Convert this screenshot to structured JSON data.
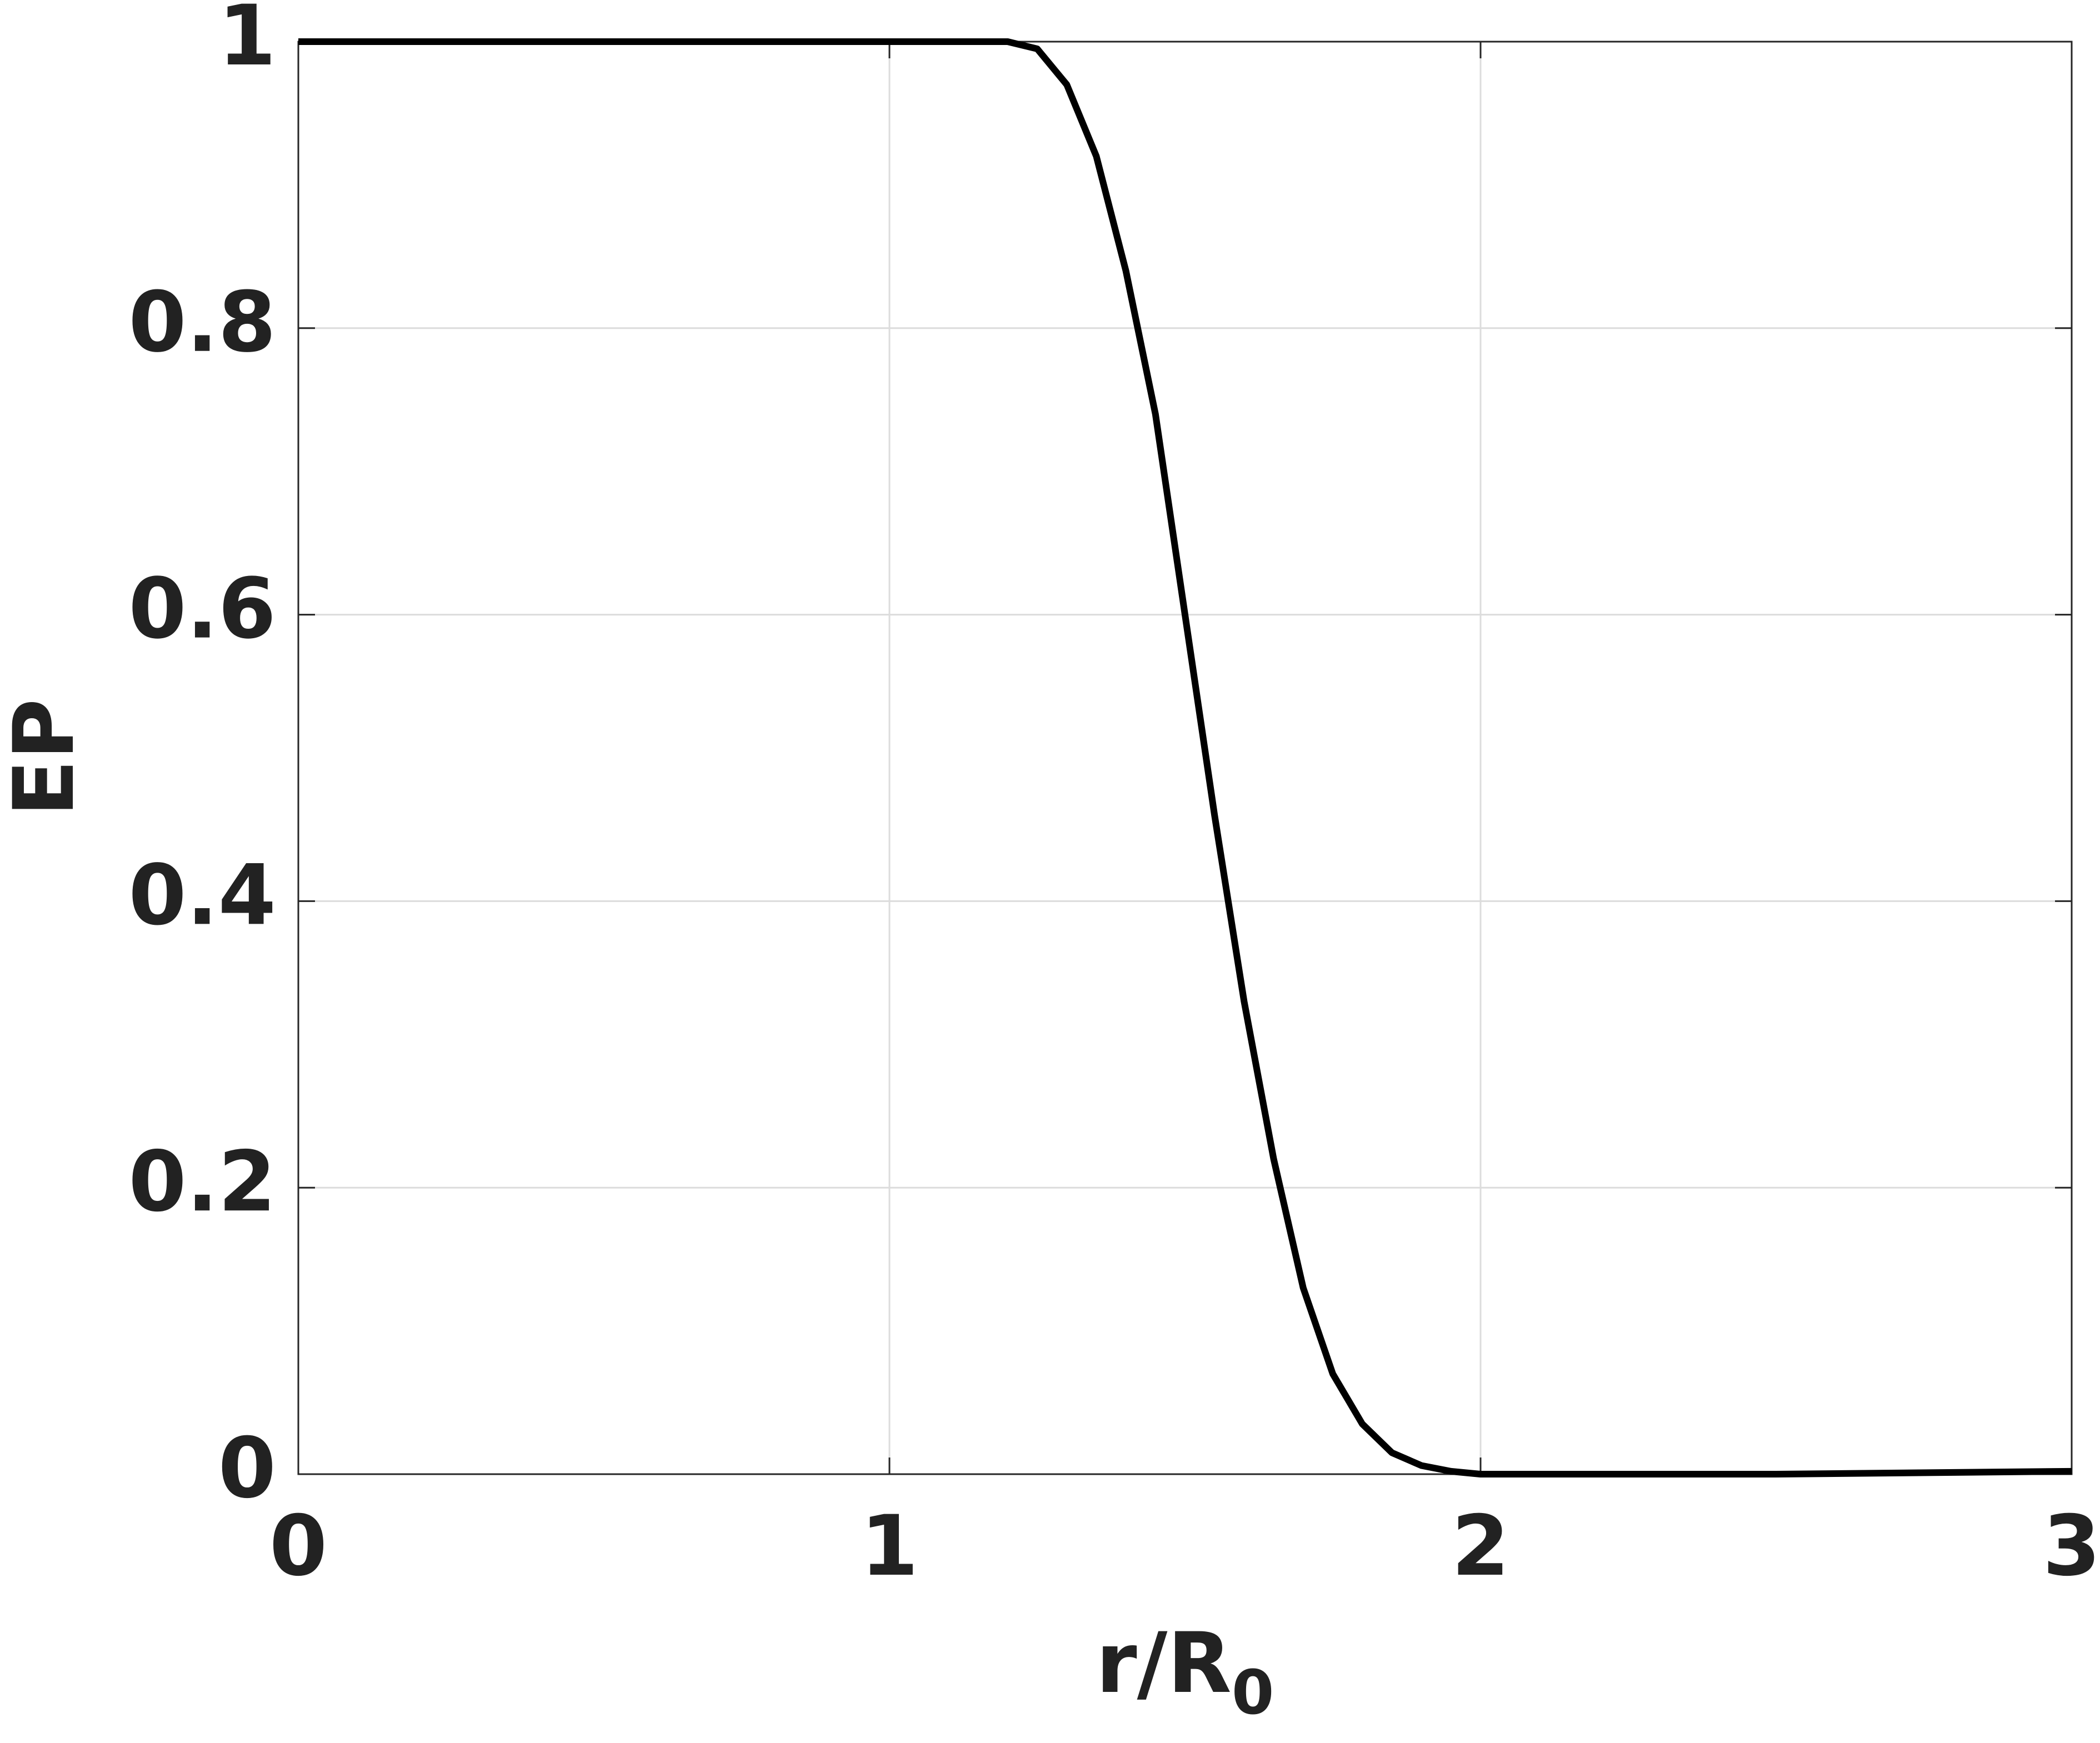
{
  "chart_data": {
    "type": "line",
    "xlabel": "r/R",
    "xlabel_subscript": "0",
    "ylabel": "EP",
    "x": [
      0,
      0.5,
      1.0,
      1.2,
      1.25,
      1.3,
      1.35,
      1.4,
      1.45,
      1.5,
      1.55,
      1.6,
      1.65,
      1.7,
      1.75,
      1.8,
      1.85,
      1.9,
      1.95,
      2.0,
      2.5,
      3.0
    ],
    "series": [
      {
        "color": "#000000",
        "values": [
          1,
          1,
          1,
          1,
          0.995,
          0.97,
          0.92,
          0.84,
          0.74,
          0.6,
          0.46,
          0.33,
          0.22,
          0.13,
          0.07,
          0.035,
          0.015,
          0.006,
          0.002,
          0,
          0,
          0.002
        ]
      }
    ],
    "xlim": [
      0,
      3
    ],
    "xticks": [
      0,
      1,
      2,
      3
    ],
    "ylim": [
      0,
      1
    ],
    "yticks": [
      0,
      0.2,
      0.4,
      0.6,
      0.8,
      1
    ],
    "grid": true
  }
}
